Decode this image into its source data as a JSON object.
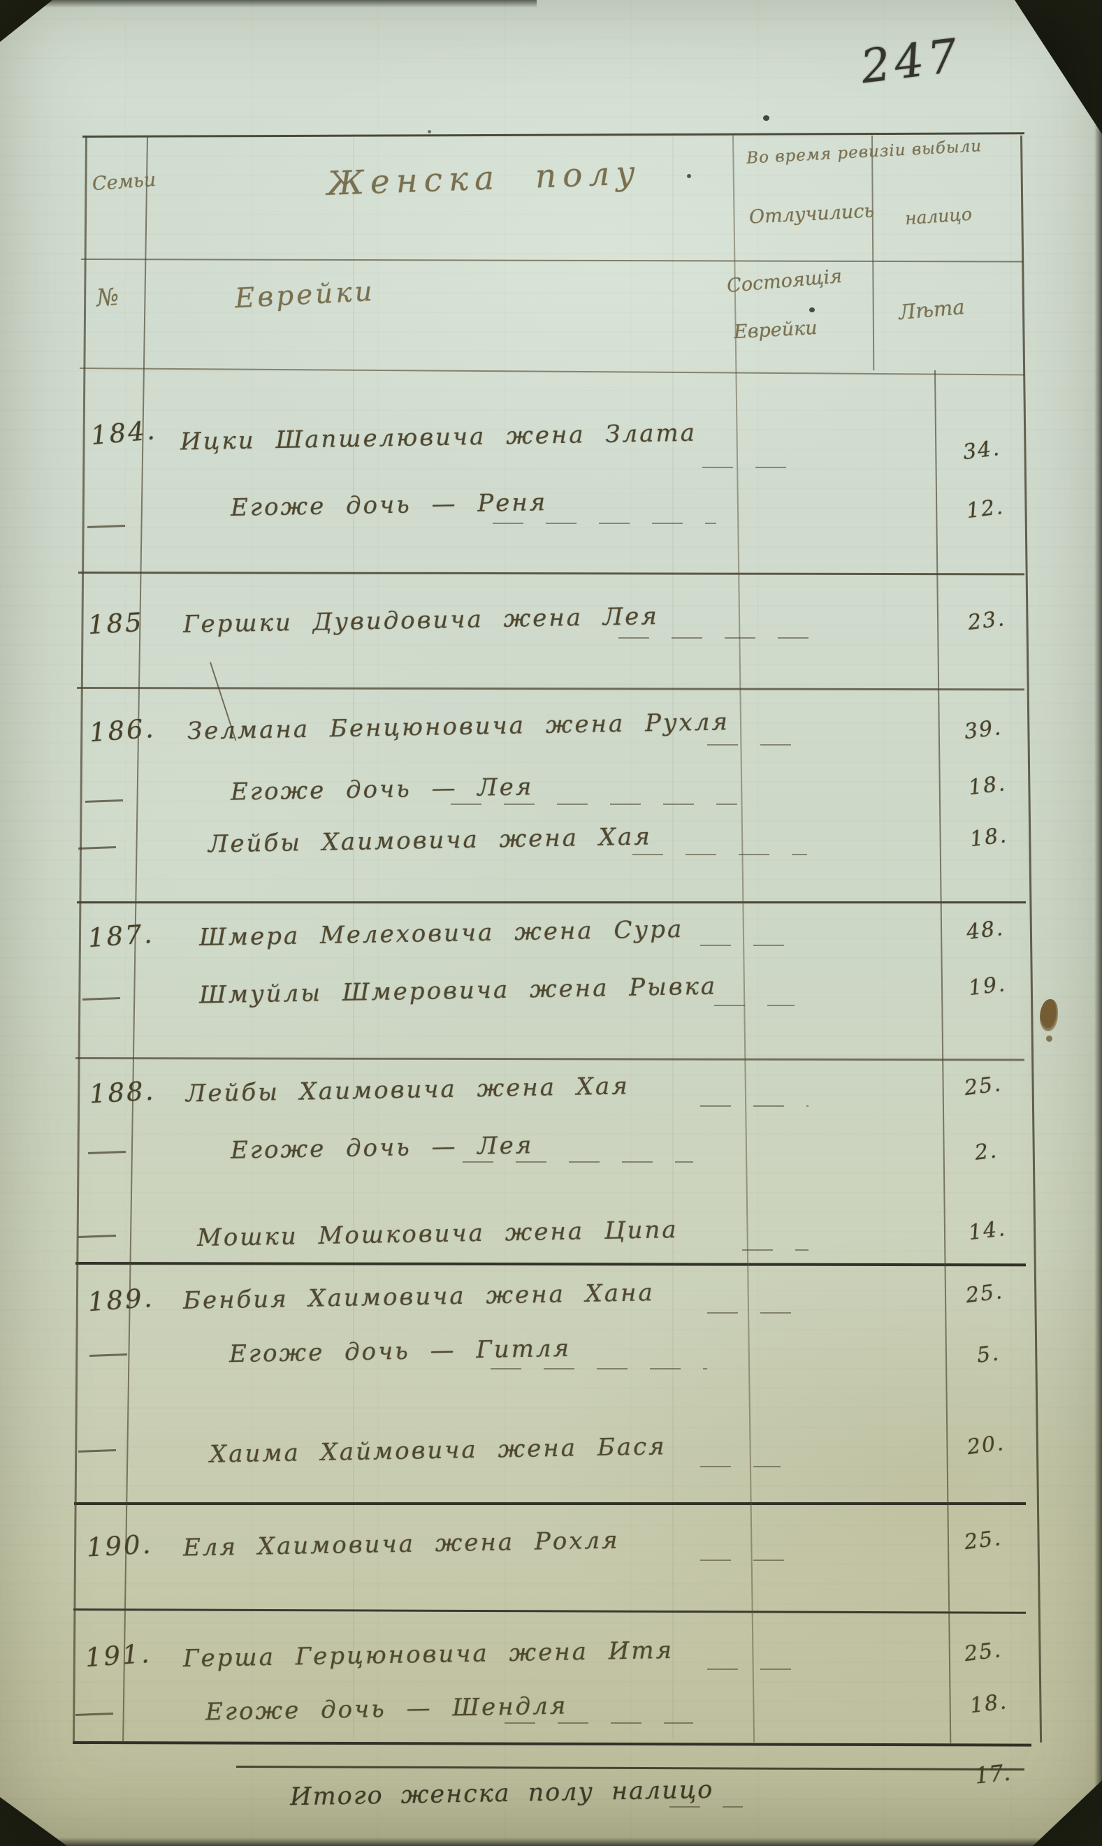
{
  "page": {
    "number": "247"
  },
  "colors": {
    "paper": "#cfdacc",
    "ink": "#4f4830",
    "rule_line": "#4a4430",
    "dark_edge": "#14160e",
    "stain": "#6b4d20"
  },
  "table": {
    "header": {
      "row1": {
        "family": "Семьи",
        "names": "Женска полу",
        "status_line1": "Во время ревизіи выбыли",
        "status_line2": "Отлучились",
        "age": "налицо"
      },
      "row2": {
        "family": "№",
        "names": "Еврейки",
        "status_line1": "Состоящія",
        "status_line2": "Еврейки",
        "age": "Лѣта"
      }
    },
    "rows": [
      {
        "no": "184.",
        "lines": [
          {
            "name": "Ицки Шапшелювича жена Злата",
            "age": "34."
          },
          {
            "name": "Егоже дочь — Реня",
            "age": "12."
          }
        ]
      },
      {
        "no": "185",
        "lines": [
          {
            "name": "Гершки Дувидовича жена Лея",
            "age": "23."
          }
        ]
      },
      {
        "no": "186.",
        "lines": [
          {
            "name": "Зелмана Бенцюновича жена Рухля",
            "age": "39."
          },
          {
            "name": "Егоже дочь — Лея",
            "age": "18."
          },
          {
            "name": "Лейбы Хаимовича жена Хая",
            "age": "18."
          }
        ]
      },
      {
        "no": "187.",
        "lines": [
          {
            "name": "Шмера Мелеховича жена Сура",
            "age": "48."
          },
          {
            "name": "Шмуйлы Шмеровича жена Рывка",
            "age": "19."
          }
        ]
      },
      {
        "no": "188.",
        "lines": [
          {
            "name": "Лейбы Хаимовича жена Хая",
            "age": "25."
          },
          {
            "name": "Егоже дочь — Лея",
            "age": "2."
          },
          {
            "name": "Мошки Мошковича жена Ципа",
            "age": "14."
          }
        ]
      },
      {
        "no": "189.",
        "lines": [
          {
            "name": "Бенбия Хаимовича жена Хана",
            "age": "25."
          },
          {
            "name": "Егоже дочь — Гитля",
            "age": "5."
          },
          {
            "name": "Хаима Хаймовича жена Бася",
            "age": "20."
          }
        ]
      },
      {
        "no": "190.",
        "lines": [
          {
            "name": "Еля Хаимовича жена Рохля",
            "age": "25."
          }
        ]
      },
      {
        "no": "191.",
        "lines": [
          {
            "name": "Герша Герцюновича жена Итя",
            "age": "25."
          },
          {
            "name": "Егоже дочь — Шендля",
            "age": "18."
          }
        ]
      }
    ]
  },
  "footer": {
    "label": "Итого женска полу налицо",
    "value": "17."
  }
}
